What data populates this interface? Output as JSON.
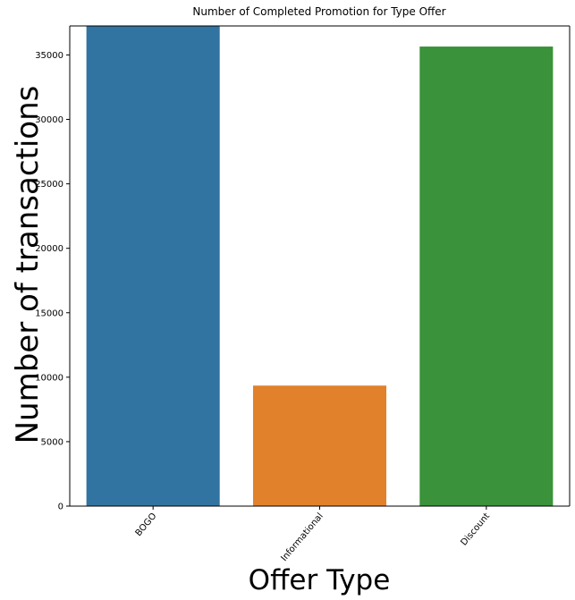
{
  "chart_data": {
    "type": "bar",
    "title": "Number of Completed Promotion for Type Offer",
    "xlabel": "Offer Type",
    "ylabel": "Number of transactions",
    "categories": [
      "BOGO",
      "Informational",
      "Discount"
    ],
    "values": [
      37250,
      9350,
      35650
    ],
    "colors": [
      "#3274a1",
      "#e1812c",
      "#3a923a"
    ],
    "ylim": [
      0,
      37250
    ],
    "yticks": [
      0,
      5000,
      10000,
      15000,
      20000,
      25000,
      30000,
      35000
    ],
    "x_tick_rotation": -50,
    "grid": false,
    "legend": "none"
  }
}
